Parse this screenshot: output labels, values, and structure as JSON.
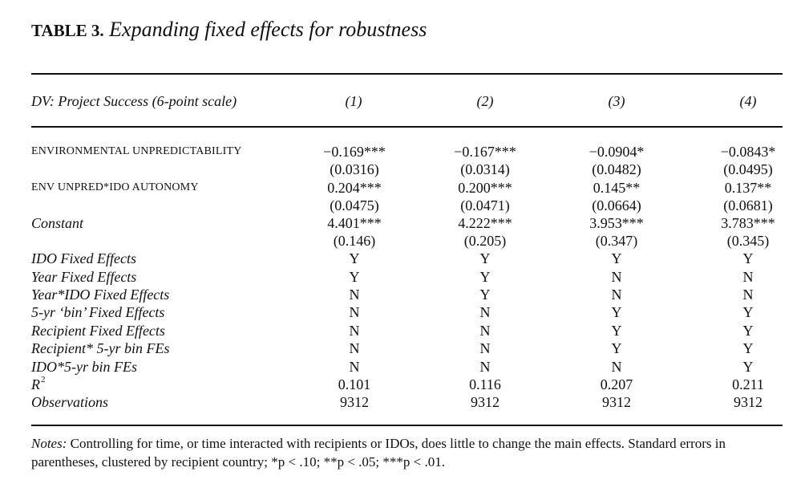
{
  "title": {
    "label": "TABLE 3.",
    "text": "Expanding fixed effects for robustness"
  },
  "header": {
    "dv": "DV: Project Success (6-point scale)",
    "columns": [
      "(1)",
      "(2)",
      "(3)",
      "(4)"
    ]
  },
  "rows": [
    {
      "label": "ENVIRONMENTAL UNPREDICTABILITY",
      "style": "sc",
      "cells": [
        "−0.169***",
        "−0.167***",
        "−0.0904*",
        "−0.0843*"
      ]
    },
    {
      "label": "",
      "style": "",
      "cells": [
        "(0.0316)",
        "(0.0314)",
        "(0.0482)",
        "(0.0495)"
      ]
    },
    {
      "label": "ENV UNPRED*IDO AUTONOMY",
      "style": "sc",
      "cells": [
        "0.204***",
        "0.200***",
        "0.145**",
        "0.137**"
      ]
    },
    {
      "label": "",
      "style": "",
      "cells": [
        "(0.0475)",
        "(0.0471)",
        "(0.0664)",
        "(0.0681)"
      ]
    },
    {
      "label": "Constant",
      "style": "it",
      "cells": [
        "4.401***",
        "4.222***",
        "3.953***",
        "3.783***"
      ]
    },
    {
      "label": "",
      "style": "",
      "cells": [
        "(0.146)",
        "(0.205)",
        "(0.347)",
        "(0.345)"
      ]
    },
    {
      "label": "IDO Fixed Effects",
      "style": "it",
      "cells": [
        "Y",
        "Y",
        "Y",
        "Y"
      ]
    },
    {
      "label": "Year Fixed Effects",
      "style": "it",
      "cells": [
        "Y",
        "Y",
        "N",
        "N"
      ]
    },
    {
      "label": "Year*IDO Fixed Effects",
      "style": "it",
      "cells": [
        "N",
        "Y",
        "N",
        "N"
      ]
    },
    {
      "label": "5-yr ‘bin’ Fixed Effects",
      "style": "it",
      "cells": [
        "N",
        "N",
        "Y",
        "Y"
      ]
    },
    {
      "label": "Recipient Fixed Effects",
      "style": "it",
      "cells": [
        "N",
        "N",
        "Y",
        "Y"
      ]
    },
    {
      "label": "Recipient* 5-yr bin FEs",
      "style": "it",
      "cells": [
        "N",
        "N",
        "Y",
        "Y"
      ]
    },
    {
      "label": "IDO*5-yr bin FEs",
      "style": "it",
      "cells": [
        "N",
        "N",
        "N",
        "Y"
      ]
    },
    {
      "label": "R",
      "label_sup": "2",
      "style": "it",
      "cells": [
        "0.101",
        "0.116",
        "0.207",
        "0.211"
      ]
    },
    {
      "label": "Observations",
      "style": "it",
      "cells": [
        "9312",
        "9312",
        "9312",
        "9312"
      ]
    }
  ],
  "notes": {
    "label": "Notes:",
    "text": " Controlling for time, or time interacted with recipients or IDOs, does little to change the main effects. Standard errors in parentheses, clustered by recipient country; *p < .10; **p < .05; ***p < .01."
  }
}
